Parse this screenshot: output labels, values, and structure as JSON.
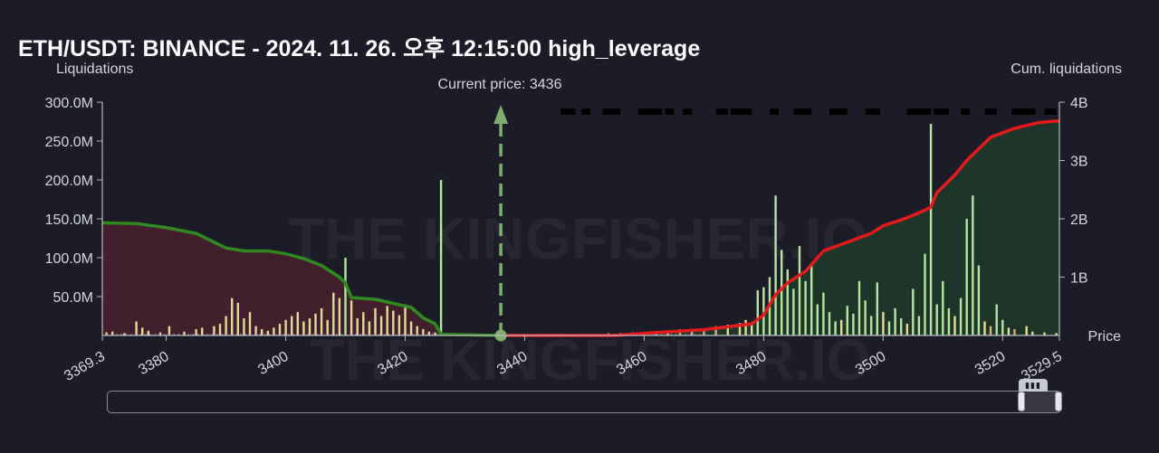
{
  "title": "ETH/USDT: BINANCE - 2024. 11. 26. 오후 12:15:00 high_leverage",
  "current_price_label": "Current price: 3436",
  "watermark": "THE KINGFISHER.IO",
  "colors": {
    "background": "#1b1c27",
    "short_cum_line": "#2e8b1e",
    "short_area": "#4a1f2e",
    "long_cum_line": "#e51b1b",
    "long_area": "#1f3a2a",
    "bar_green": "#b4e6a0",
    "bar_yellow": "#e1dc96",
    "bar_orange": "#e1aa78",
    "bar_purple": "#a596d2",
    "current_price": "#7fae6e"
  },
  "chart_data": {
    "type": "bar",
    "title": "ETH/USDT: BINANCE - 2024. 11. 26. 오후 12:15:00 high_leverage",
    "ylabel": "Liquidations",
    "y2label": "Cum. liquidations",
    "xlabel": "Price",
    "xlim": [
      3369.3,
      3529.5
    ],
    "ylim": [
      0,
      300000000
    ],
    "y2lim": [
      0,
      4000000000
    ],
    "x_ticks": [
      "3369.3",
      "3380",
      "3400",
      "3420",
      "3440",
      "3460",
      "3480",
      "3500",
      "3520",
      "3529.5"
    ],
    "y_ticks": [
      "50.0M",
      "100.0M",
      "150.0M",
      "200.0M",
      "250.0M",
      "300.0M"
    ],
    "y2_ticks": [
      "1B",
      "2B",
      "3B",
      "4B"
    ],
    "current_price": 3436,
    "grid": false,
    "bars": [
      [
        3370.0,
        4,
        "y"
      ],
      [
        3371.0,
        5,
        "y"
      ],
      [
        3373.0,
        3,
        "y"
      ],
      [
        3375.0,
        18,
        "y"
      ],
      [
        3376.0,
        10,
        "y"
      ],
      [
        3377.0,
        6,
        "y"
      ],
      [
        3379.0,
        4,
        "y"
      ],
      [
        3380.5,
        12,
        "y"
      ],
      [
        3383.0,
        5,
        "y"
      ],
      [
        3385.0,
        8,
        "y"
      ],
      [
        3386.0,
        10,
        "y"
      ],
      [
        3388.0,
        12,
        "y"
      ],
      [
        3389.0,
        15,
        "y"
      ],
      [
        3390.0,
        25,
        "y"
      ],
      [
        3391.0,
        48,
        "y"
      ],
      [
        3392.0,
        42,
        "y"
      ],
      [
        3393.0,
        22,
        "y"
      ],
      [
        3394.0,
        30,
        "y"
      ],
      [
        3395.0,
        12,
        "y"
      ],
      [
        3396.0,
        8,
        "y"
      ],
      [
        3397.0,
        6,
        "y"
      ],
      [
        3398.0,
        10,
        "y"
      ],
      [
        3399.0,
        15,
        "y"
      ],
      [
        3400.0,
        20,
        "y"
      ],
      [
        3401.0,
        25,
        "y"
      ],
      [
        3402.0,
        30,
        "y"
      ],
      [
        3403.0,
        18,
        "y"
      ],
      [
        3404.0,
        22,
        "y"
      ],
      [
        3405.0,
        28,
        "y"
      ],
      [
        3406.0,
        35,
        "y"
      ],
      [
        3407.0,
        20,
        "y"
      ],
      [
        3408.0,
        55,
        "y"
      ],
      [
        3409.0,
        48,
        "y"
      ],
      [
        3410.0,
        100,
        "g"
      ],
      [
        3411.0,
        45,
        "y"
      ],
      [
        3412.0,
        22,
        "y"
      ],
      [
        3413.0,
        30,
        "y"
      ],
      [
        3414.0,
        18,
        "y"
      ],
      [
        3415.0,
        35,
        "y"
      ],
      [
        3416.0,
        25,
        "y"
      ],
      [
        3417.0,
        38,
        "y"
      ],
      [
        3418.0,
        32,
        "y"
      ],
      [
        3419.0,
        26,
        "y"
      ],
      [
        3420.0,
        40,
        "y"
      ],
      [
        3421.0,
        18,
        "y"
      ],
      [
        3422.0,
        12,
        "y"
      ],
      [
        3423.0,
        8,
        "y"
      ],
      [
        3424.0,
        5,
        "y"
      ],
      [
        3425.0,
        4,
        "y"
      ],
      [
        3426.0,
        200,
        "g"
      ],
      [
        3427.0,
        3,
        "y"
      ],
      [
        3428.0,
        3,
        "y"
      ],
      [
        3429.0,
        2,
        "y"
      ],
      [
        3431.0,
        2,
        "y"
      ],
      [
        3433.0,
        2,
        "y"
      ],
      [
        3446.0,
        2,
        "o"
      ],
      [
        3450.0,
        2,
        "o"
      ],
      [
        3454.0,
        3,
        "o"
      ],
      [
        3456.0,
        3,
        "o"
      ],
      [
        3458.0,
        4,
        "o"
      ],
      [
        3460.0,
        4,
        "o"
      ],
      [
        3462.0,
        5,
        "o"
      ],
      [
        3464.0,
        6,
        "o"
      ],
      [
        3466.0,
        8,
        "o"
      ],
      [
        3468.0,
        7,
        "o"
      ],
      [
        3470.0,
        9,
        "o"
      ],
      [
        3472.0,
        12,
        "o"
      ],
      [
        3474.0,
        14,
        "y"
      ],
      [
        3476.0,
        16,
        "y"
      ],
      [
        3477.0,
        20,
        "y"
      ],
      [
        3478.0,
        15,
        "y"
      ],
      [
        3479.0,
        58,
        "g"
      ],
      [
        3480.0,
        62,
        "g"
      ],
      [
        3481.0,
        75,
        "g"
      ],
      [
        3482.0,
        180,
        "g"
      ],
      [
        3483.0,
        110,
        "g"
      ],
      [
        3484.0,
        85,
        "g"
      ],
      [
        3485.0,
        60,
        "g"
      ],
      [
        3486.0,
        115,
        "g"
      ],
      [
        3487.0,
        70,
        "g"
      ],
      [
        3488.0,
        90,
        "g"
      ],
      [
        3489.0,
        40,
        "g"
      ],
      [
        3490.0,
        55,
        "g"
      ],
      [
        3491.0,
        30,
        "g"
      ],
      [
        3492.0,
        18,
        "g"
      ],
      [
        3493.0,
        20,
        "y"
      ],
      [
        3494.0,
        38,
        "g"
      ],
      [
        3495.0,
        28,
        "g"
      ],
      [
        3496.0,
        70,
        "g"
      ],
      [
        3497.0,
        45,
        "g"
      ],
      [
        3498.0,
        25,
        "g"
      ],
      [
        3499.0,
        68,
        "g"
      ],
      [
        3500.0,
        30,
        "y"
      ],
      [
        3501.0,
        18,
        "g"
      ],
      [
        3502.0,
        35,
        "g"
      ],
      [
        3503.0,
        22,
        "g"
      ],
      [
        3504.0,
        15,
        "y"
      ],
      [
        3505.0,
        60,
        "g"
      ],
      [
        3506.0,
        25,
        "g"
      ],
      [
        3507.0,
        105,
        "g"
      ],
      [
        3508.0,
        272,
        "g"
      ],
      [
        3509.0,
        40,
        "g"
      ],
      [
        3510.0,
        70,
        "g"
      ],
      [
        3511.0,
        35,
        "g"
      ],
      [
        3512.0,
        25,
        "y"
      ],
      [
        3513.0,
        48,
        "g"
      ],
      [
        3514.0,
        150,
        "g"
      ],
      [
        3515.0,
        180,
        "g"
      ],
      [
        3516.0,
        90,
        "g"
      ],
      [
        3517.0,
        18,
        "y"
      ],
      [
        3518.0,
        12,
        "o"
      ],
      [
        3519.0,
        40,
        "g"
      ],
      [
        3520.0,
        20,
        "g"
      ],
      [
        3521.0,
        10,
        "y"
      ],
      [
        3522.0,
        8,
        "o"
      ],
      [
        3524.0,
        12,
        "y"
      ],
      [
        3525.0,
        5,
        "y"
      ],
      [
        3527.0,
        4,
        "y"
      ],
      [
        3529.0,
        3,
        "y"
      ]
    ],
    "short_cumulative": [
      [
        3369.3,
        1.93
      ],
      [
        3375.0,
        1.92
      ],
      [
        3380.0,
        1.85
      ],
      [
        3385.0,
        1.75
      ],
      [
        3390.0,
        1.5
      ],
      [
        3393.0,
        1.45
      ],
      [
        3397.0,
        1.45
      ],
      [
        3400.0,
        1.4
      ],
      [
        3403.0,
        1.32
      ],
      [
        3406.0,
        1.2
      ],
      [
        3409.0,
        1.0
      ],
      [
        3410.0,
        0.9
      ],
      [
        3411.0,
        0.65
      ],
      [
        3415.0,
        0.62
      ],
      [
        3418.0,
        0.55
      ],
      [
        3421.0,
        0.48
      ],
      [
        3423.0,
        0.3
      ],
      [
        3425.0,
        0.2
      ],
      [
        3426.0,
        0.02
      ],
      [
        3436.0,
        0.0
      ]
    ],
    "long_cumulative": [
      [
        3436.0,
        0.0
      ],
      [
        3455.0,
        0.0
      ],
      [
        3462.0,
        0.05
      ],
      [
        3470.0,
        0.1
      ],
      [
        3478.0,
        0.2
      ],
      [
        3480.0,
        0.35
      ],
      [
        3482.0,
        0.7
      ],
      [
        3484.0,
        0.9
      ],
      [
        3487.0,
        1.1
      ],
      [
        3490.0,
        1.45
      ],
      [
        3494.0,
        1.6
      ],
      [
        3498.0,
        1.75
      ],
      [
        3500.0,
        1.88
      ],
      [
        3503.0,
        1.98
      ],
      [
        3506.0,
        2.1
      ],
      [
        3508.0,
        2.2
      ],
      [
        3509.0,
        2.45
      ],
      [
        3512.0,
        2.75
      ],
      [
        3514.0,
        3.0
      ],
      [
        3516.0,
        3.2
      ],
      [
        3518.0,
        3.4
      ],
      [
        3522.0,
        3.55
      ],
      [
        3526.0,
        3.65
      ],
      [
        3529.5,
        3.68
      ]
    ],
    "upper_dashes": [
      [
        3446,
        3448.5
      ],
      [
        3449.5,
        3451
      ],
      [
        3453,
        3456
      ],
      [
        3459,
        3463
      ],
      [
        3463.5,
        3465
      ],
      [
        3466.5,
        3468
      ],
      [
        3472,
        3474
      ],
      [
        3474.5,
        3478
      ],
      [
        3481,
        3482.5
      ],
      [
        3485,
        3488
      ],
      [
        3491,
        3494
      ],
      [
        3497,
        3499.5
      ],
      [
        3504,
        3508
      ],
      [
        3508.5,
        3511
      ],
      [
        3513,
        3514.5
      ],
      [
        3517,
        3519
      ],
      [
        3521.5,
        3525.5
      ],
      [
        3527,
        3529
      ]
    ]
  }
}
